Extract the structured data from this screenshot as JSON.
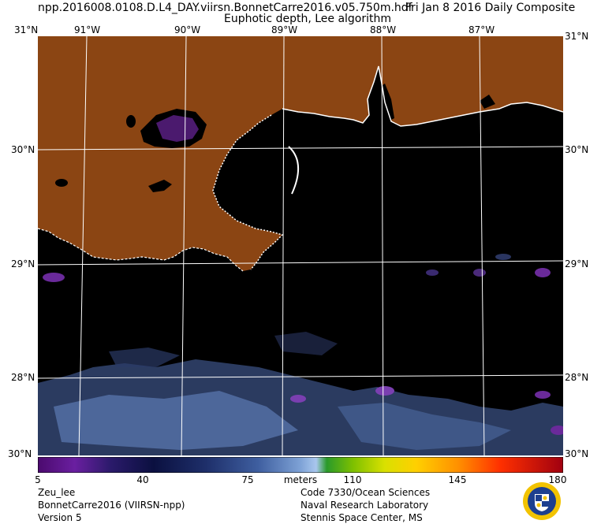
{
  "header": {
    "filename": "npp.2016008.0108.D.L4_DAY.viirsn.BonnetCarre2016.v05.750m.hdf",
    "date": "Fri Jan  8 2016 Daily Composite",
    "product": "Euphotic depth, Lee algorithm"
  },
  "map": {
    "top_lon_labels": [
      "91°W",
      "90°W",
      "89°W",
      "88°W",
      "87°W"
    ],
    "corner_lat_top": "31°N",
    "corner_lat_bottom": "30°N",
    "edge_lat_labels": [
      "30°N",
      "29°N",
      "28°N"
    ],
    "land_color": "#8B4513",
    "water_color": "#000000"
  },
  "colorbar": {
    "ticks": [
      "5",
      "40",
      "75",
      "110",
      "145",
      "180"
    ],
    "units": "meters",
    "min": 5,
    "max": 180
  },
  "footer": {
    "left": [
      "Zeu_lee",
      "BonnetCarre2016 (VIIRSN-npp)",
      "Version 5"
    ],
    "right": [
      "Code 7330/Ocean Sciences",
      "Naval Research Laboratory",
      "Stennis Space Center, MS"
    ]
  }
}
